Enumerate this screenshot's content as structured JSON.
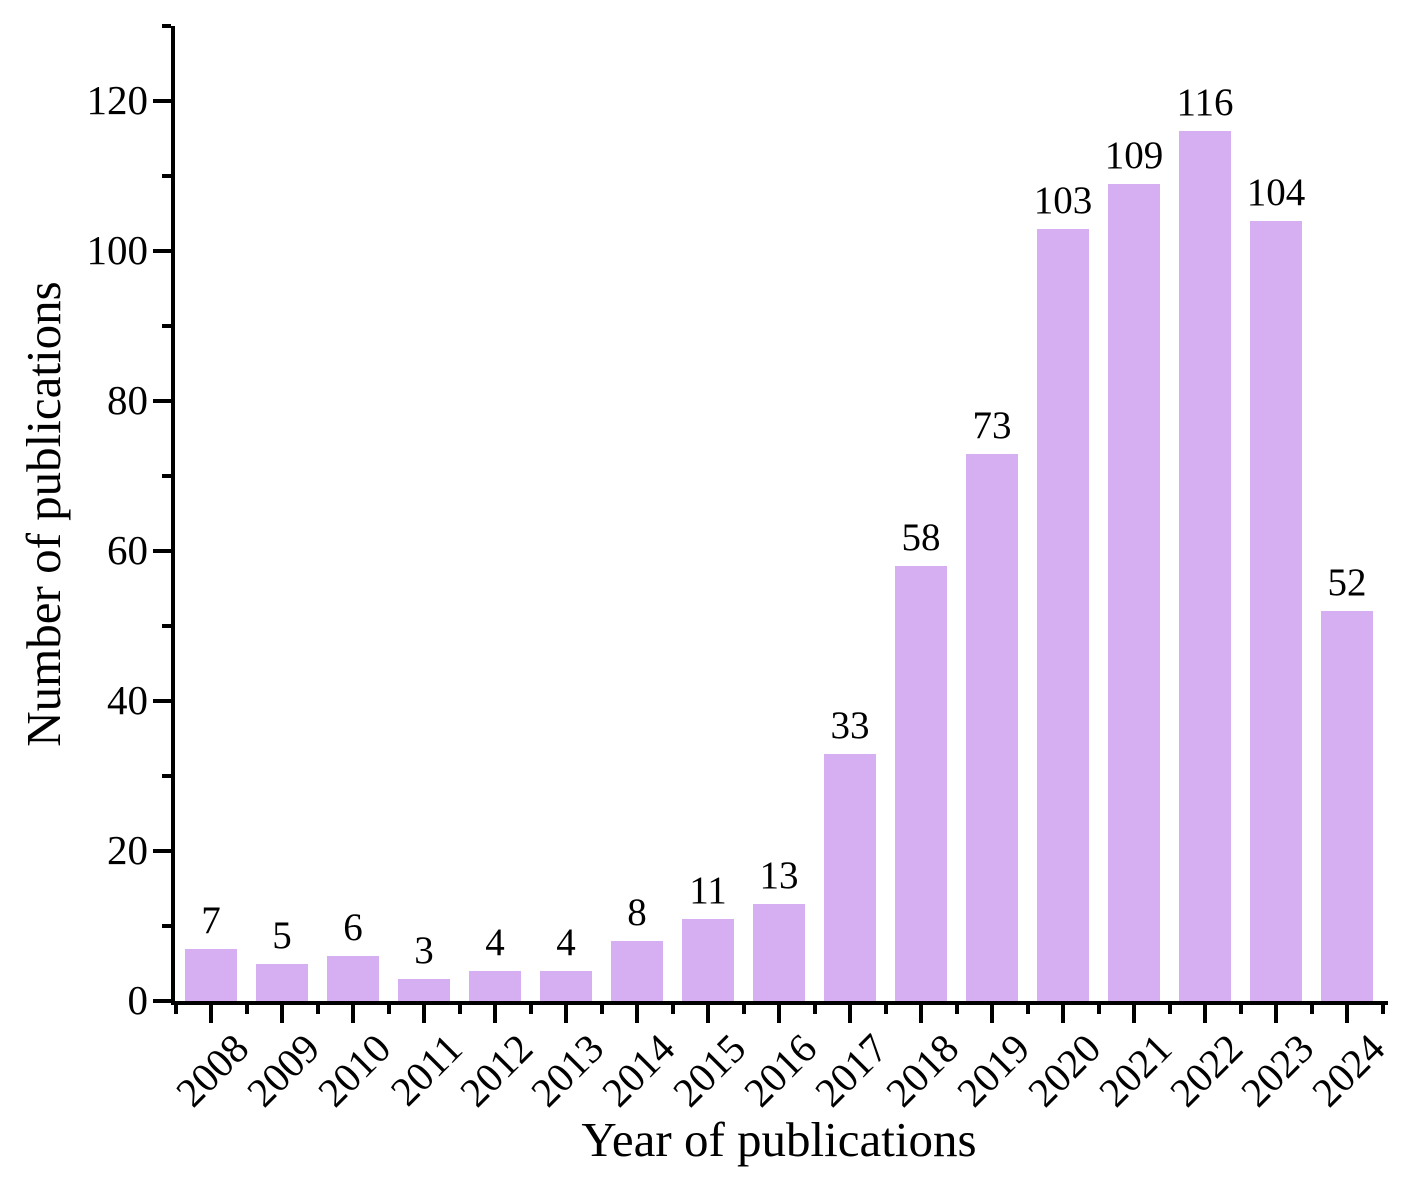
{
  "figure": {
    "background_color": "#ffffff",
    "axis_color": "#000000",
    "text_color": "#000000"
  },
  "chart_data": {
    "type": "bar",
    "title": "",
    "xlabel": "Year of publications",
    "ylabel": "Number of publications",
    "categories": [
      "2008",
      "2009",
      "2010",
      "2011",
      "2012",
      "2013",
      "2014",
      "2015",
      "2016",
      "2017",
      "2018",
      "2019",
      "2020",
      "2021",
      "2022",
      "2023",
      "2024"
    ],
    "values": [
      7,
      5,
      6,
      3,
      4,
      4,
      8,
      11,
      13,
      33,
      58,
      73,
      103,
      109,
      116,
      104,
      52
    ],
    "bar_value_labels": [
      "7",
      "5",
      "6",
      "3",
      "4",
      "4",
      "8",
      "11",
      "13",
      "33",
      "58",
      "73",
      "103",
      "109",
      "116",
      "104",
      "52"
    ],
    "bar_color": "#d6aff2",
    "ylim": [
      0,
      130
    ],
    "yticks_major": [
      0,
      20,
      40,
      60,
      80,
      100,
      120
    ],
    "yticks_minor": [
      10,
      30,
      50,
      70,
      90,
      110,
      130
    ],
    "ytick_labels": [
      "0",
      "20",
      "40",
      "60",
      "80",
      "100",
      "120"
    ],
    "xtick_label_rotation_deg": 45,
    "grid": false,
    "legend": null
  }
}
